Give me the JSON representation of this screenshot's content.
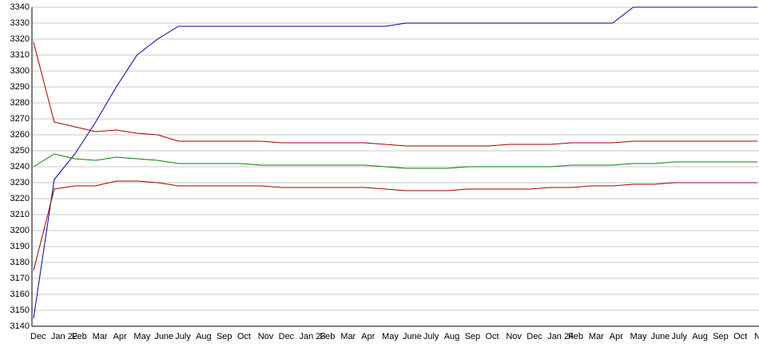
{
  "chart_data": {
    "type": "line",
    "categories": [
      "Dec",
      "Jan 22",
      "Feb",
      "Mar",
      "Apr",
      "May",
      "June",
      "July",
      "Aug",
      "Sep",
      "Oct",
      "Nov",
      "Dec",
      "Jan 23",
      "Feb",
      "Mar",
      "Apr",
      "May",
      "June",
      "July",
      "Aug",
      "Sep",
      "Oct",
      "Nov",
      "Dec",
      "Jan 24",
      "Feb",
      "Mar",
      "Apr",
      "May",
      "June",
      "July",
      "Aug",
      "Sep",
      "Oct",
      "Nov"
    ],
    "series": [
      {
        "color": "#0000a0",
        "values": [
          3145,
          3232,
          3248,
          3268,
          3290,
          3310,
          3320,
          3328,
          3328,
          3328,
          3328,
          3328,
          3328,
          3328,
          3328,
          3328,
          3328,
          3328,
          3330,
          3330,
          3330,
          3330,
          3330,
          3330,
          3330,
          3330,
          3330,
          3330,
          3330,
          3340,
          3340,
          3340,
          3340,
          3340,
          3340,
          3340
        ]
      },
      {
        "color": "#a00000",
        "values": [
          3318,
          3268,
          3265,
          3262,
          3263,
          3261,
          3260,
          3256,
          3256,
          3256,
          3256,
          3256,
          3255,
          3255,
          3255,
          3255,
          3255,
          3254,
          3253,
          3253,
          3253,
          3253,
          3253,
          3254,
          3254,
          3254,
          3255,
          3255,
          3255,
          3256,
          3256,
          3256,
          3256,
          3256,
          3256,
          3256
        ]
      },
      {
        "color": "#008000",
        "values": [
          3240,
          3248,
          3245,
          3244,
          3246,
          3245,
          3244,
          3242,
          3242,
          3242,
          3242,
          3241,
          3241,
          3241,
          3241,
          3241,
          3241,
          3240,
          3239,
          3239,
          3239,
          3240,
          3240,
          3240,
          3240,
          3240,
          3241,
          3241,
          3241,
          3242,
          3242,
          3243,
          3243,
          3243,
          3243,
          3243
        ]
      },
      {
        "color": "#a00000",
        "values": [
          3175,
          3226,
          3228,
          3228,
          3231,
          3231,
          3230,
          3228,
          3228,
          3228,
          3228,
          3228,
          3227,
          3227,
          3227,
          3227,
          3227,
          3226,
          3225,
          3225,
          3225,
          3226,
          3226,
          3226,
          3226,
          3227,
          3227,
          3228,
          3228,
          3229,
          3229,
          3230,
          3230,
          3230,
          3230,
          3230
        ]
      }
    ],
    "ylim": [
      3140,
      3340
    ],
    "yticks": [
      3140,
      3150,
      3160,
      3170,
      3180,
      3190,
      3200,
      3210,
      3220,
      3230,
      3240,
      3250,
      3260,
      3270,
      3280,
      3290,
      3300,
      3310,
      3320,
      3330,
      3340
    ],
    "grid": true
  }
}
